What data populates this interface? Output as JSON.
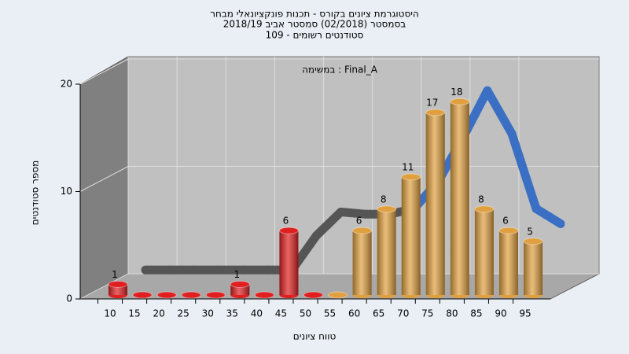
{
  "chart_data": {
    "type": "bar",
    "title": "היסטוגרמת ציונים בקורס - תכנות פונקציונאלי מבחר",
    "subtitle": "בסמסטר  (02/2018)  סמסטר אביב 2018/19",
    "subtitle2": "סטודנטים רשומים - 109",
    "annotation": "במשימה : Final_A",
    "y_label": "מספר סטודנטים",
    "x_label": "טווח ציונים",
    "x": [
      10,
      15,
      20,
      25,
      30,
      35,
      40,
      45,
      50,
      55,
      60,
      65,
      70,
      75,
      80,
      85,
      90,
      95
    ],
    "values": [
      1,
      0,
      0,
      0,
      0,
      1,
      0,
      6,
      0,
      0,
      6,
      8,
      11,
      17,
      18,
      8,
      6,
      5
    ],
    "colors": [
      "#e02020",
      "#e02020",
      "#e02020",
      "#e02020",
      "#e02020",
      "#e02020",
      "#e02020",
      "#e02020",
      "#e02020",
      "#e0a040",
      "#e0a040",
      "#e0a040",
      "#e0a040",
      "#e0a040",
      "#e0a040",
      "#e0a040",
      "#e0a040",
      "#e0a040"
    ],
    "trend": {
      "values": [
        0.5,
        0.5,
        0.5,
        0.5,
        0.5,
        0.5,
        0.5,
        3.7,
        5.9,
        5.7,
        5.7,
        6.2,
        8.8,
        12.8,
        17.2,
        13.2,
        6.2,
        4.8
      ],
      "colors": [
        "#555555",
        "#555555",
        "#555555",
        "#555555",
        "#555555",
        "#555555",
        "#555555",
        "#555555",
        "#555555",
        "#555555",
        "#555555",
        "#3a6fc4",
        "#3a6fc4",
        "#3a6fc4",
        "#3a6fc4",
        "#3a6fc4",
        "#3a6fc4",
        "#3a6fc4"
      ]
    },
    "ylim": [
      0,
      20
    ],
    "yticks": [
      0,
      10,
      20
    ],
    "grid": true
  }
}
